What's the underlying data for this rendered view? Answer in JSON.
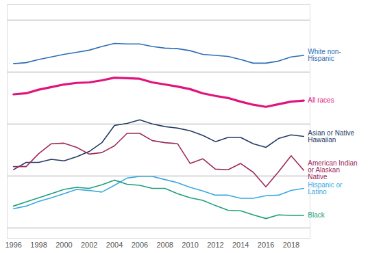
{
  "chart_data": {
    "type": "line",
    "x": [
      1996,
      1997,
      1998,
      1999,
      2000,
      2001,
      2002,
      2003,
      2004,
      2005,
      2006,
      2007,
      2008,
      2009,
      2010,
      2011,
      2012,
      2013,
      2014,
      2015,
      2016,
      2017,
      2018,
      2019
    ],
    "xlim": [
      1995.5,
      2019.5
    ],
    "xticks": [
      1996,
      1998,
      2000,
      2002,
      2004,
      2006,
      2008,
      2010,
      2012,
      2014,
      2016,
      2018
    ],
    "ylim": [
      -2,
      43
    ],
    "yticks": [
      0,
      10,
      20,
      30,
      40
    ],
    "grid": true,
    "tick_labels": "x",
    "series": [
      {
        "name": "White non-Hispanic",
        "color": "#2e6db4",
        "values": [
          31.6,
          31.8,
          32.4,
          32.9,
          33.4,
          33.8,
          34.2,
          34.9,
          35.5,
          35.4,
          35.4,
          34.9,
          34.6,
          34.5,
          34.1,
          33.4,
          33.2,
          33.0,
          32.4,
          31.7,
          31.7,
          32.1,
          32.9,
          33.2
        ]
      },
      {
        "name": "All races",
        "color": "#e0157c",
        "values": [
          25.7,
          25.9,
          26.6,
          27.1,
          27.6,
          27.9,
          28.0,
          28.4,
          28.9,
          28.8,
          28.7,
          28.0,
          27.6,
          27.2,
          26.7,
          25.9,
          25.4,
          25.0,
          24.3,
          23.7,
          23.3,
          23.8,
          24.3,
          24.5
        ]
      },
      {
        "name": "Asian or Native Hawaiian",
        "color": "#243a63",
        "values": [
          11.2,
          12.6,
          12.6,
          13.2,
          12.9,
          13.7,
          14.7,
          16.4,
          19.7,
          20.1,
          20.8,
          20.0,
          19.5,
          19.2,
          18.7,
          17.8,
          16.6,
          17.4,
          17.4,
          16.2,
          15.5,
          17.2,
          17.9,
          17.6
        ]
      },
      {
        "name": "American Indian or Alaskan Native",
        "color": "#9c2a5a",
        "values": [
          11.8,
          11.8,
          14.3,
          16.2,
          16.3,
          15.5,
          14.2,
          14.5,
          15.8,
          18.2,
          18.2,
          16.8,
          16.4,
          16.2,
          12.4,
          13.3,
          11.3,
          11.2,
          12.4,
          10.7,
          7.9,
          10.8,
          13.9,
          11.1
        ]
      },
      {
        "name": "Hispanic or Latino",
        "color": "#3aa8e0",
        "values": [
          3.7,
          4.2,
          5.1,
          5.8,
          6.6,
          7.4,
          7.2,
          6.9,
          8.2,
          9.6,
          9.9,
          9.9,
          9.3,
          8.7,
          7.8,
          7.1,
          6.3,
          6.3,
          5.7,
          5.7,
          6.2,
          6.3,
          7.2,
          7.6
        ]
      },
      {
        "name": "Black",
        "color": "#1f9e7a",
        "values": [
          4.2,
          5.0,
          5.8,
          6.6,
          7.4,
          7.8,
          7.6,
          8.3,
          9.2,
          8.4,
          8.2,
          7.6,
          7.6,
          6.6,
          5.8,
          5.3,
          4.3,
          3.4,
          3.3,
          2.5,
          1.8,
          2.5,
          2.4,
          2.4
        ]
      }
    ]
  }
}
